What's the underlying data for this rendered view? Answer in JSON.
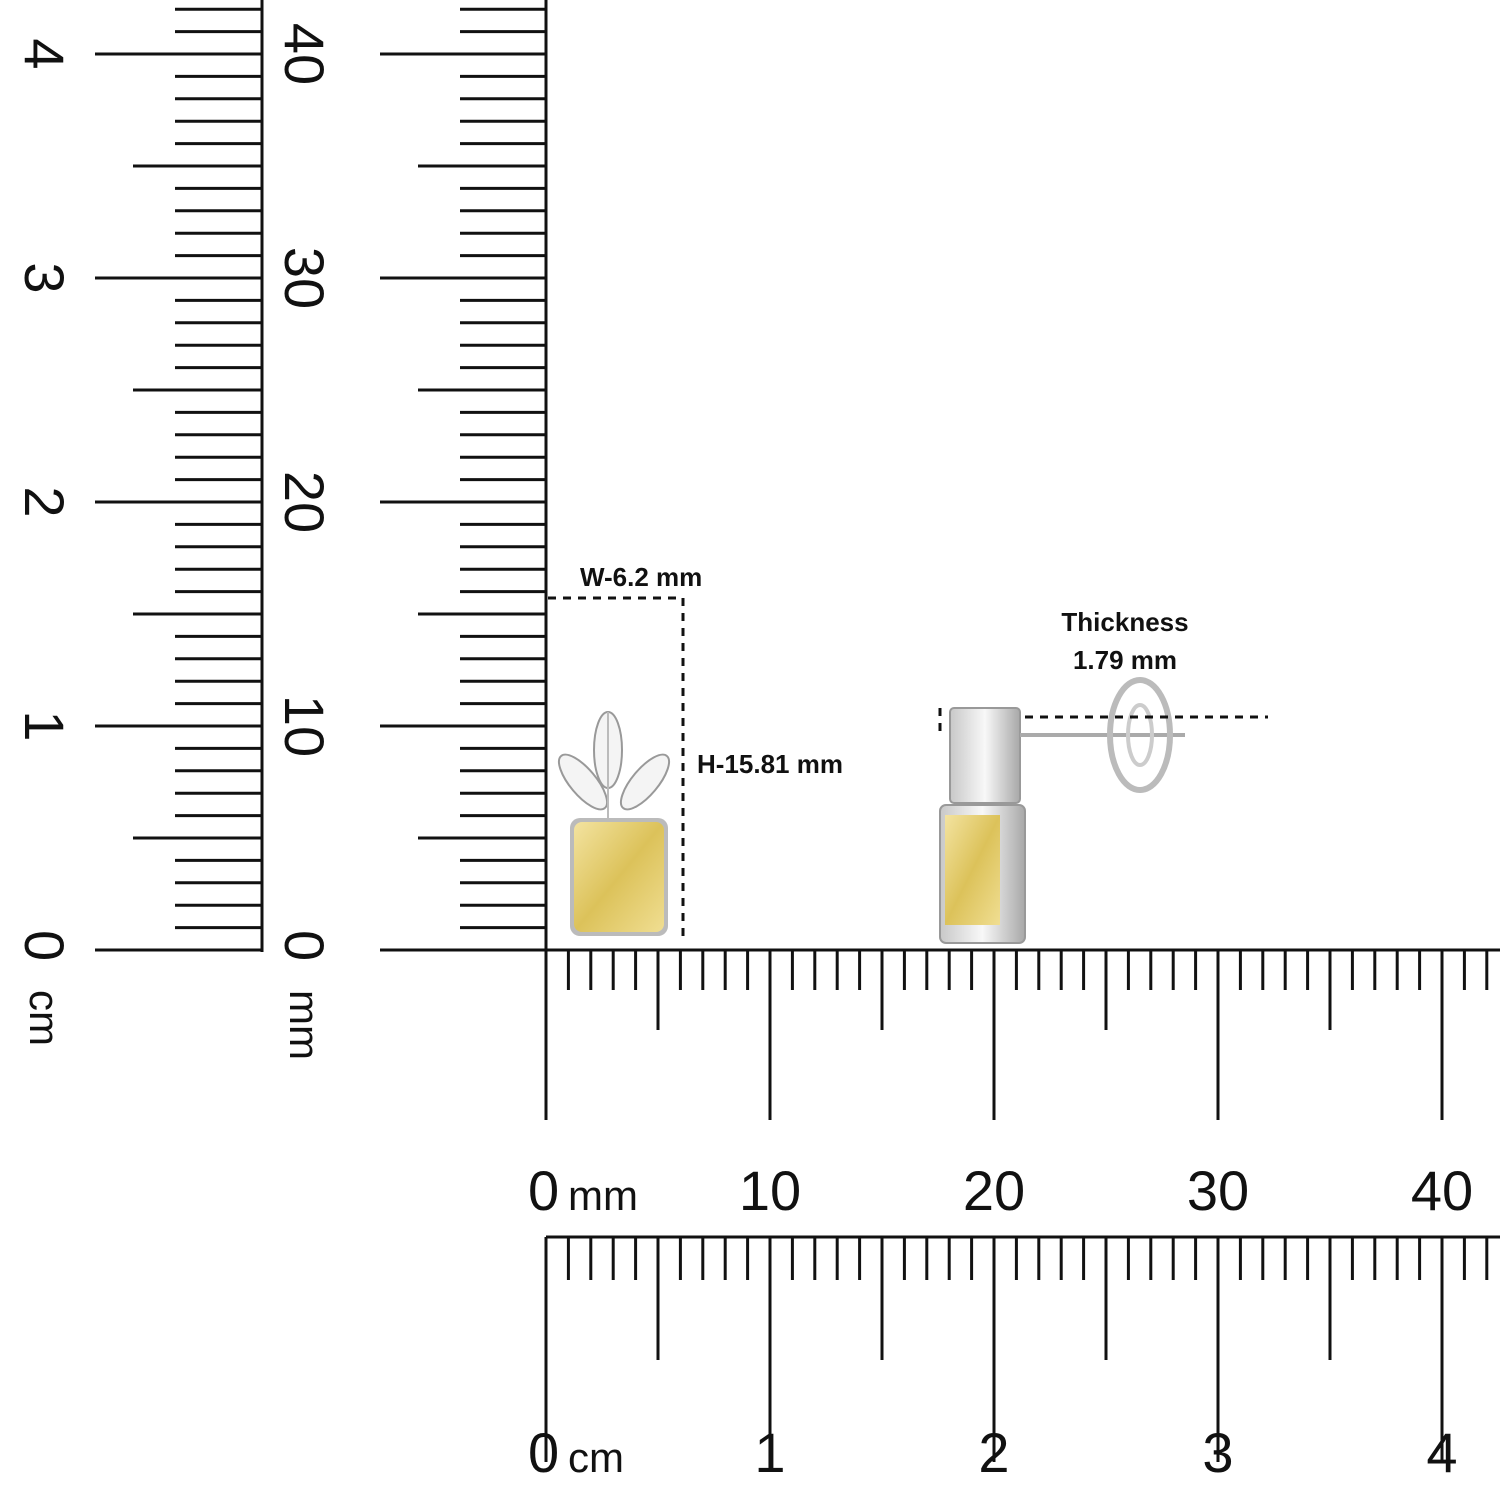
{
  "rulers": {
    "vertical_cm": {
      "unit": "cm",
      "labels": [
        "0",
        "1",
        "2",
        "3",
        "4"
      ]
    },
    "vertical_mm": {
      "unit": "mm",
      "labels": [
        "0",
        "10",
        "20",
        "30",
        "40"
      ]
    },
    "horizontal_mm": {
      "unit": "mm",
      "labels": [
        "0",
        "10",
        "20",
        "30",
        "40"
      ]
    },
    "horizontal_cm": {
      "unit": "cm",
      "labels": [
        "0",
        "1",
        "2",
        "3",
        "4"
      ]
    }
  },
  "annotations": {
    "width": "W-6.2 mm",
    "height": "H-15.81 mm",
    "thickness_label": "Thickness",
    "thickness_value": "1.79 mm"
  }
}
